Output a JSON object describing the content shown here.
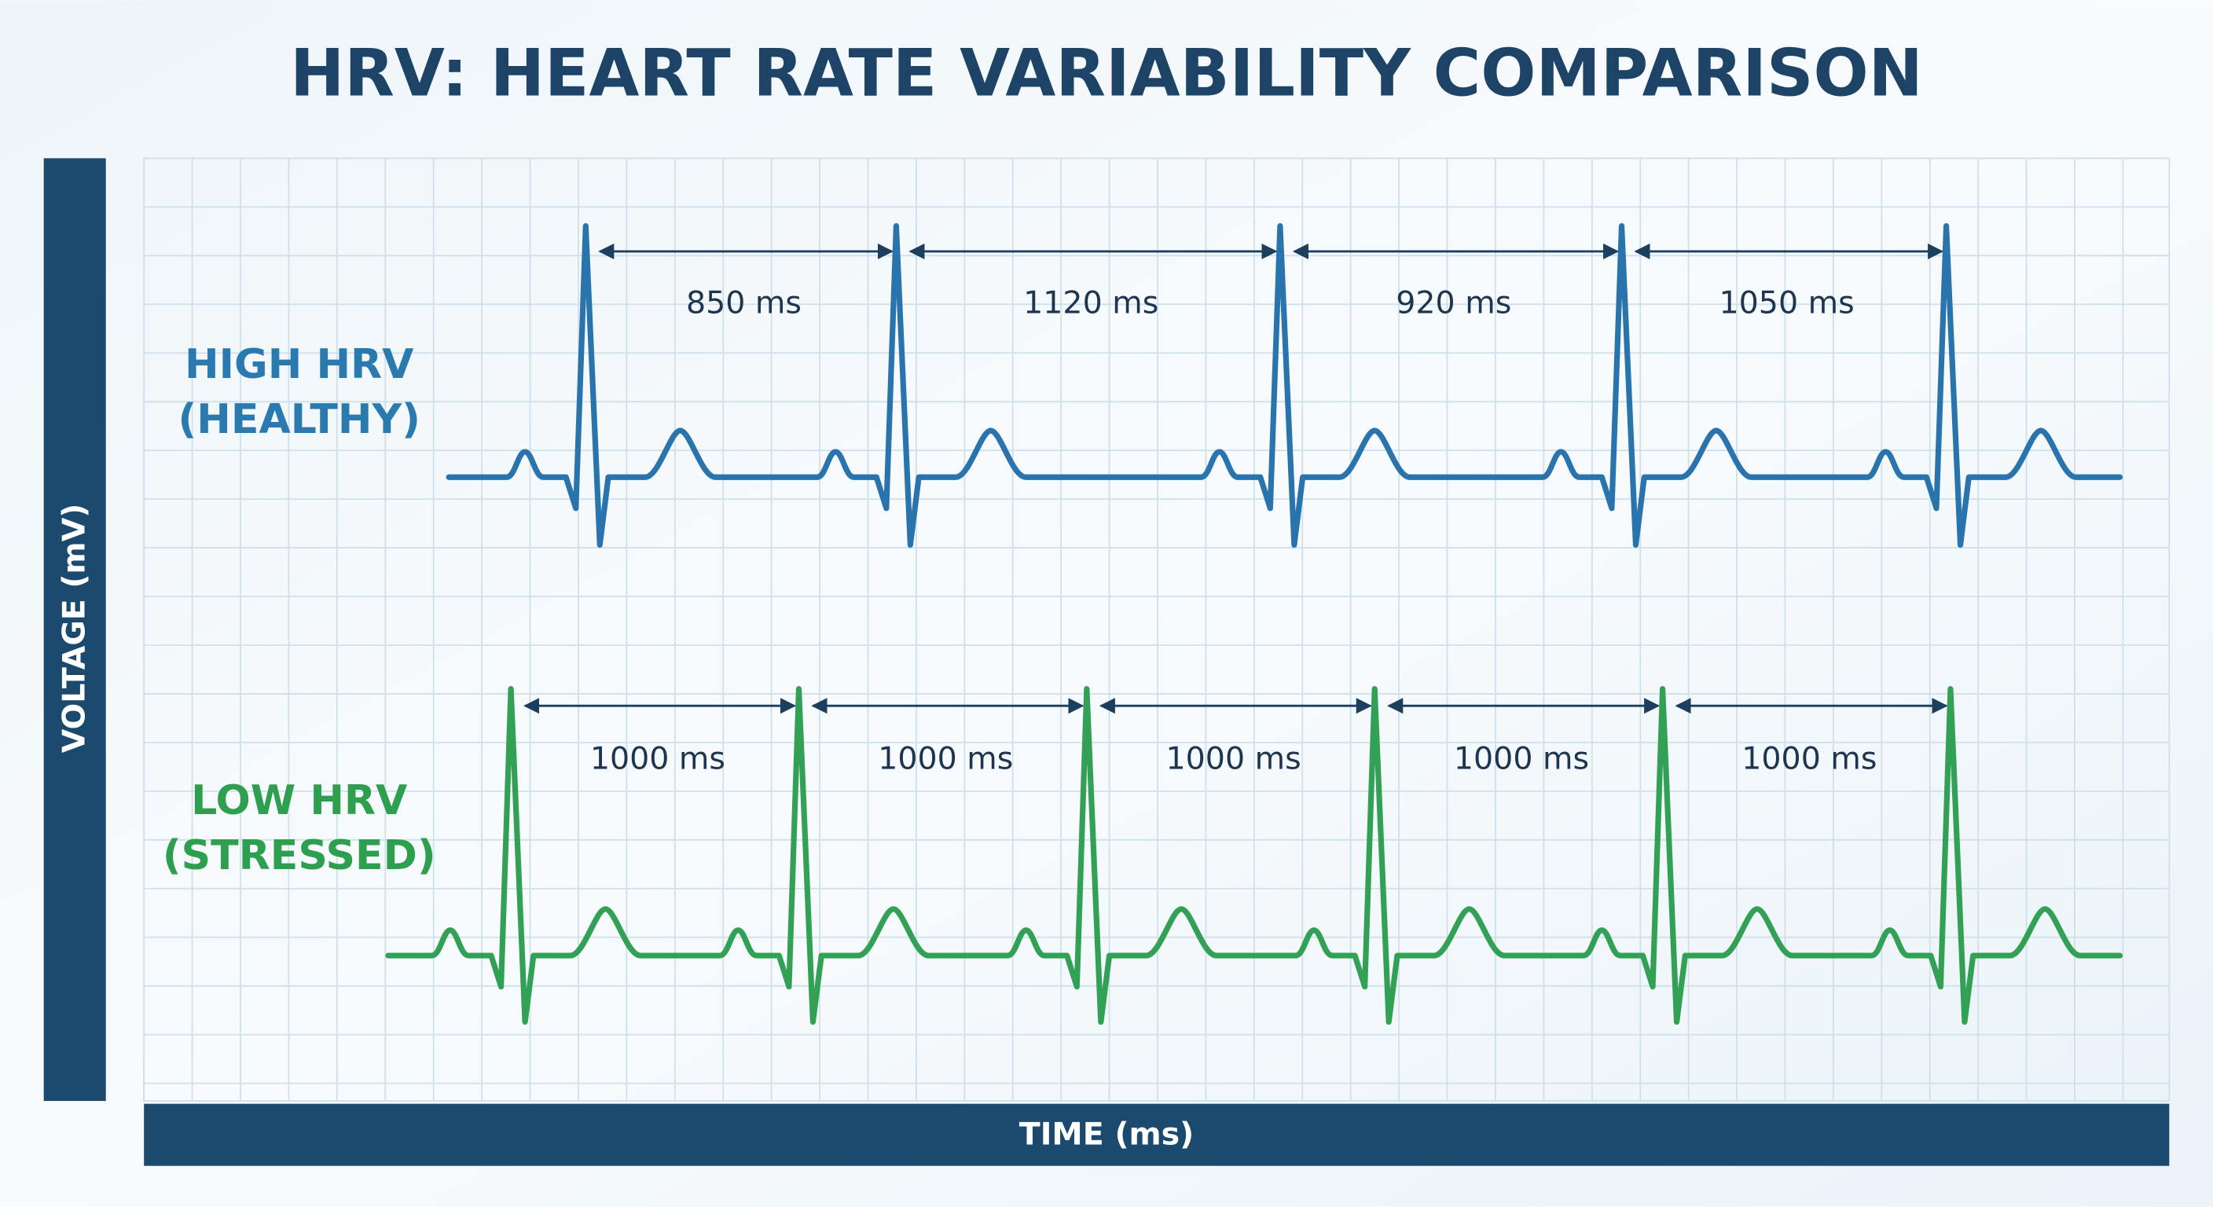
{
  "title": "HRV: HEART RATE VARIABILITY COMPARISON",
  "y_axis_label": "VOLTAGE (mV)",
  "x_axis_label": "TIME (ms)",
  "traces": [
    {
      "label_lines": [
        "HIGH HRV",
        "(HEALTHY)"
      ],
      "intervals": [
        "850 ms",
        "1120 ms",
        "920 ms",
        "1050 ms"
      ]
    },
    {
      "label_lines": [
        "LOW HRV",
        "(STRESSED)"
      ],
      "intervals": [
        "1000 ms",
        "1000 ms",
        "1000 ms",
        "1000 ms",
        "1000 ms"
      ]
    }
  ]
}
